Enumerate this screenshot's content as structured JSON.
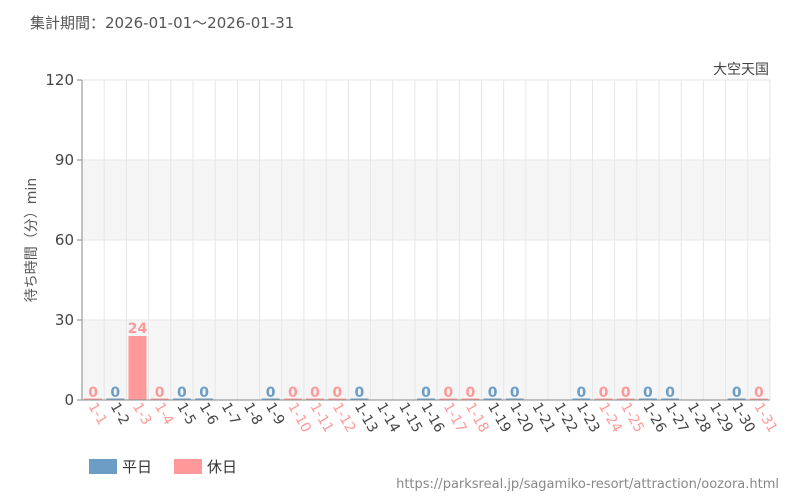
{
  "header": {
    "period": "集計期間：2026-01-01～2026-01-31"
  },
  "footer": {
    "source_url": "https://parksreal.jp/sagamiko-resort/attraction/oozora.html"
  },
  "colors": {
    "weekday": "#6b9dc5",
    "holiday": "#ff9999",
    "band": "#f5f5f5",
    "grid": "#e6e6e6",
    "axis_text": "#444444"
  },
  "chart_data": {
    "type": "bar",
    "title": "大空天国",
    "ylabel": "待ち時間（分）min",
    "xlabel": "",
    "ylim": [
      0,
      120
    ],
    "yticks": [
      0,
      30,
      60,
      90,
      120
    ],
    "grid": true,
    "legend_position": "bottom-left",
    "legend": [
      {
        "key": "weekday",
        "label": "平日"
      },
      {
        "key": "holiday",
        "label": "休日"
      }
    ],
    "categories": [
      "1-1",
      "1-2",
      "1-3",
      "1-4",
      "1-5",
      "1-6",
      "1-7",
      "1-8",
      "1-9",
      "1-10",
      "1-11",
      "1-12",
      "1-13",
      "1-14",
      "1-15",
      "1-16",
      "1-17",
      "1-18",
      "1-19",
      "1-20",
      "1-21",
      "1-22",
      "1-23",
      "1-24",
      "1-25",
      "1-26",
      "1-27",
      "1-28",
      "1-29",
      "1-30",
      "1-31"
    ],
    "day_types": [
      "holiday",
      "weekday",
      "holiday",
      "holiday",
      "weekday",
      "weekday",
      "weekday",
      "weekday",
      "weekday",
      "holiday",
      "holiday",
      "holiday",
      "weekday",
      "weekday",
      "weekday",
      "weekday",
      "holiday",
      "holiday",
      "weekday",
      "weekday",
      "weekday",
      "weekday",
      "weekday",
      "holiday",
      "holiday",
      "weekday",
      "weekday",
      "weekday",
      "weekday",
      "weekday",
      "holiday"
    ],
    "values": [
      0,
      0,
      24,
      0,
      0,
      0,
      null,
      null,
      0,
      0,
      0,
      0,
      0,
      null,
      null,
      0,
      0,
      0,
      0,
      0,
      null,
      null,
      0,
      0,
      0,
      0,
      0,
      null,
      null,
      0,
      0
    ],
    "value_labels": [
      "0",
      "0",
      "24",
      "0",
      "0",
      "0",
      "",
      "",
      "0",
      "0",
      "0",
      "0",
      "0",
      "",
      "",
      "0",
      "0",
      "0",
      "0",
      "0",
      "",
      "",
      "0",
      "0",
      "0",
      "0",
      "0",
      "",
      "",
      "0",
      "0"
    ]
  }
}
